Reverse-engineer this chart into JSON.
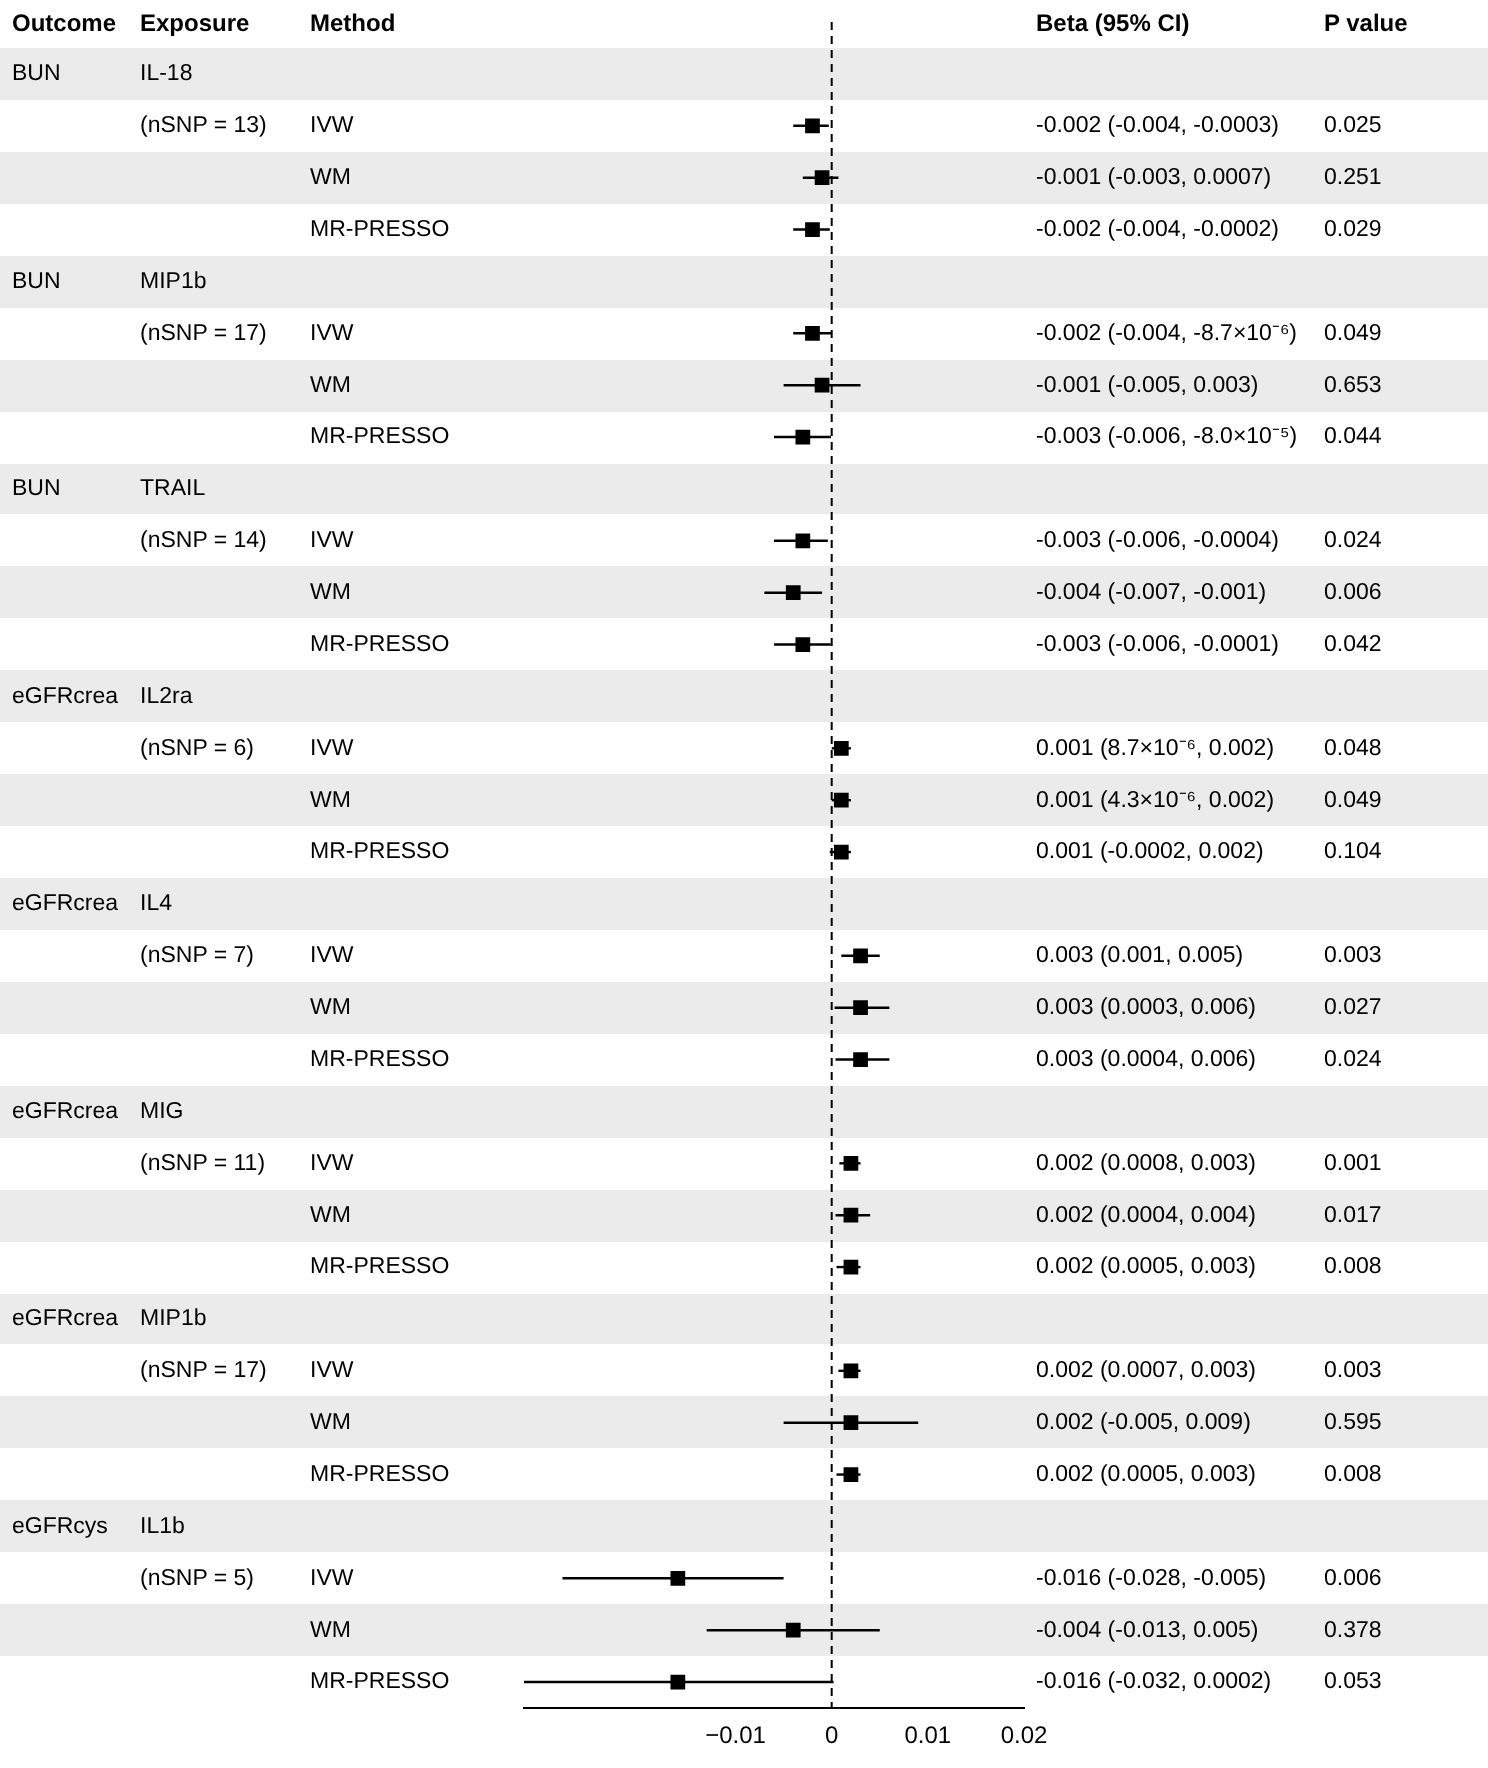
{
  "chart_data": {
    "type": "scatter",
    "orientation": "horizontal",
    "marker": "square",
    "legend": false,
    "grid": false,
    "categories": [
      null,
      "IVW",
      "WM",
      "MR-PRESSO",
      null,
      "IVW",
      "WM",
      "MR-PRESSO",
      null,
      "IVW",
      "WM",
      "MR-PRESSO",
      null,
      "IVW",
      "WM",
      "MR-PRESSO",
      null,
      "IVW",
      "WM",
      "MR-PRESSO",
      null,
      "IVW",
      "WM",
      "MR-PRESSO",
      null,
      "IVW",
      "WM",
      "MR-PRESSO",
      null,
      "IVW",
      "WM",
      "MR-PRESSO"
    ],
    "values": [
      null,
      -0.002,
      -0.001,
      -0.002,
      null,
      -0.002,
      -0.001,
      -0.003,
      null,
      -0.003,
      -0.004,
      -0.003,
      null,
      0.001,
      0.001,
      0.001,
      null,
      0.003,
      0.003,
      0.003,
      null,
      0.002,
      0.002,
      0.002,
      null,
      0.002,
      0.002,
      0.002,
      null,
      -0.016,
      -0.004,
      -0.016
    ],
    "errors": [
      null,
      [
        -0.004,
        -0.0003
      ],
      [
        -0.003,
        0.0007
      ],
      [
        -0.004,
        -0.0002
      ],
      null,
      [
        -0.004,
        -8.7e-06
      ],
      [
        -0.005,
        0.003
      ],
      [
        -0.006,
        -8e-05
      ],
      null,
      [
        -0.006,
        -0.0004
      ],
      [
        -0.007,
        -0.001
      ],
      [
        -0.006,
        -0.0001
      ],
      null,
      [
        8.7e-06,
        0.002
      ],
      [
        4.3e-06,
        0.002
      ],
      [
        -0.0002,
        0.002
      ],
      null,
      [
        0.001,
        0.005
      ],
      [
        0.0003,
        0.006
      ],
      [
        0.0004,
        0.006
      ],
      null,
      [
        0.0008,
        0.003
      ],
      [
        0.0004,
        0.004
      ],
      [
        0.0005,
        0.003
      ],
      null,
      [
        0.0007,
        0.003
      ],
      [
        -0.005,
        0.009
      ],
      [
        0.0005,
        0.003
      ],
      null,
      [
        -0.028,
        -0.005
      ],
      [
        -0.013,
        0.005
      ],
      [
        -0.032,
        0.0002
      ]
    ],
    "color": "#000000",
    "xlim": [
      -0.032,
      0.02
    ],
    "xticks": [
      {
        "value": -0.01,
        "label": "−0.01"
      },
      0,
      0.01,
      0.02
    ],
    "ref_lines": [
      {
        "axis": "x",
        "value": 0,
        "line_style": "dashed",
        "color": "#000000"
      }
    ],
    "annotations": [
      "Outcome",
      "Exposure",
      "Method",
      "Beta (95% CI)",
      "P value",
      "BUN",
      "IL-18",
      "(nSNP = 13)",
      "-0.002 (-0.004, -0.0003)",
      "-0.001 (-0.003, 0.0007)",
      "-0.002 (-0.004, -0.0002)",
      "0.025",
      "0.251",
      "0.029",
      "BUN",
      "MIP1b",
      "(nSNP = 17)",
      "-0.002 (-0.004, -8.7×10⁻⁶)",
      "-0.001 (-0.005, 0.003)",
      "-0.003 (-0.006, -8.0×10⁻⁵)",
      "0.049",
      "0.653",
      "0.044",
      "BUN",
      "TRAIL",
      "(nSNP = 14)",
      "-0.003 (-0.006, -0.0004)",
      "-0.004 (-0.007, -0.001)",
      "-0.003 (-0.006, -0.0001)",
      "0.024",
      "0.006",
      "0.042",
      "eGFRcrea",
      "IL2ra",
      "(nSNP = 6)",
      "0.001 (8.7×10⁻⁶, 0.002)",
      "0.001 (4.3×10⁻⁶, 0.002)",
      "0.001 (-0.0002, 0.002)",
      "0.048",
      "0.049",
      "0.104",
      "eGFRcrea",
      "IL4",
      "(nSNP = 7)",
      "0.003 (0.001, 0.005)",
      "0.003 (0.0003, 0.006)",
      "0.003 (0.0004, 0.006)",
      "0.003",
      "0.027",
      "0.024",
      "eGFRcrea",
      "MIG",
      "(nSNP = 11)",
      "0.002 (0.0008, 0.003)",
      "0.002 (0.0004, 0.004)",
      "0.002 (0.0005, 0.003)",
      "0.001",
      "0.017",
      "0.008",
      "eGFRcrea",
      "MIP1b",
      "(nSNP = 17)",
      "0.002 (0.0007, 0.003)",
      "0.002 (-0.005, 0.009)",
      "0.002 (0.0005, 0.003)",
      "0.003",
      "0.595",
      "0.008",
      "eGFRcys",
      "IL1b",
      "(nSNP = 5)",
      "-0.016 (-0.028, -0.005)",
      "-0.004 (-0.013, 0.005)",
      "-0.016 (-0.032, 0.0002)",
      "0.006",
      "0.378",
      "0.053"
    ]
  }
}
